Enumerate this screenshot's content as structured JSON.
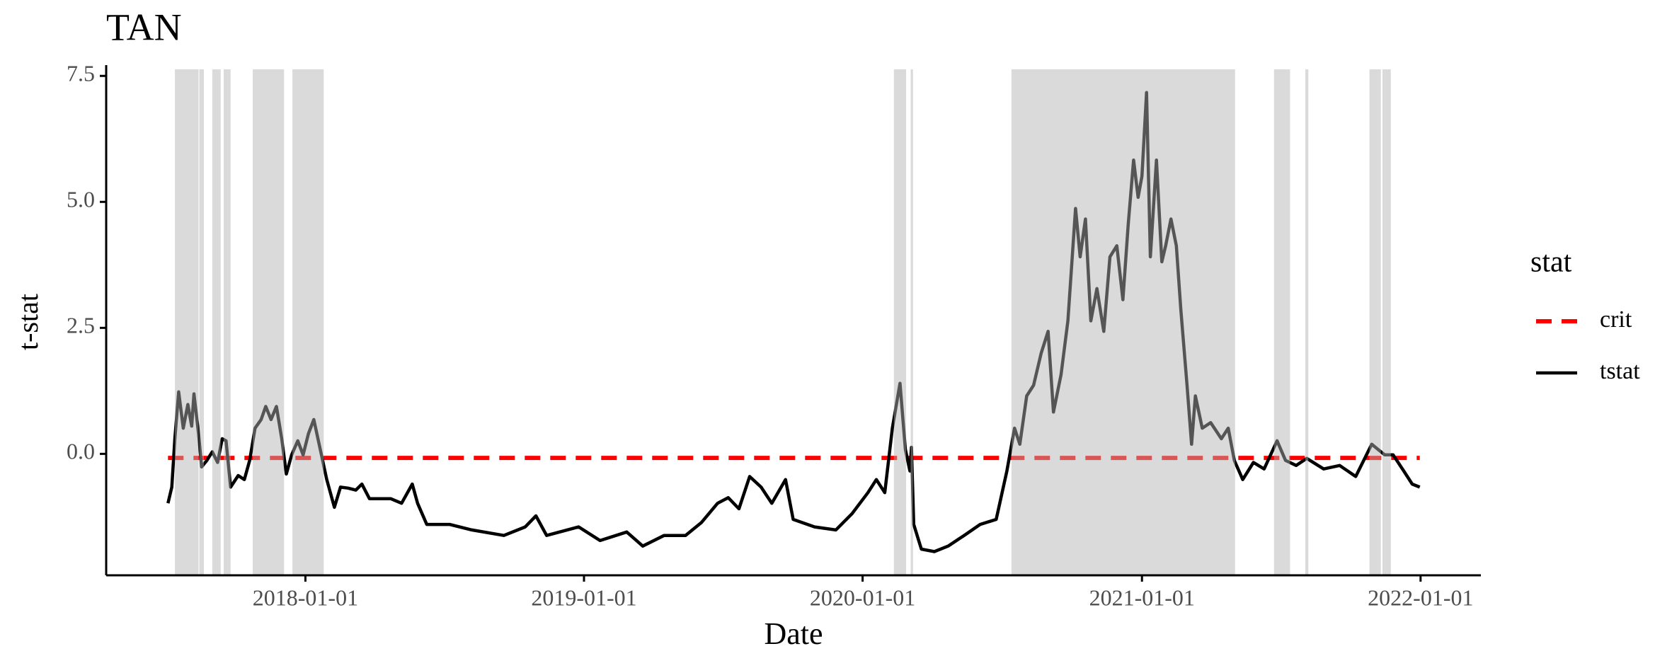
{
  "chart_data": {
    "type": "line",
    "title": "TAN",
    "xlabel": "Date",
    "ylabel": "t-stat",
    "legend_title": "stat",
    "legend": "right",
    "xlim": [
      "2017-04-15",
      "2022-03-21"
    ],
    "xticks": [
      "2018-01-01",
      "2019-01-01",
      "2020-01-01",
      "2021-01-01",
      "2022-01-01"
    ],
    "ylim": [
      -2.41,
      7.63
    ],
    "yticks": [
      {
        "value": 0,
        "label": "0.0"
      },
      2.5,
      {
        "value": 5,
        "label": "5.0"
      },
      7.5
    ],
    "shade_color": "#b1b1b1",
    "shaded": [
      [
        "2017-07-14",
        "2017-08-14"
      ],
      [
        "2017-08-15",
        "2017-08-21"
      ],
      [
        "2017-09-01",
        "2017-09-12"
      ],
      [
        "2017-09-16",
        "2017-09-25"
      ],
      [
        "2017-10-24",
        "2017-12-04"
      ],
      [
        "2017-12-15",
        "2018-01-25"
      ],
      [
        "2020-02-11",
        "2020-02-27"
      ],
      [
        "2020-03-04",
        "2020-03-07"
      ],
      [
        "2020-07-14",
        "2021-05-03"
      ],
      [
        "2021-06-23",
        "2021-07-14"
      ],
      [
        "2021-08-03",
        "2021-08-07"
      ],
      [
        "2021-10-26",
        "2021-11-10"
      ],
      [
        "2021-11-12",
        "2021-11-23"
      ]
    ],
    "series": [
      {
        "name": "crit",
        "color": "#ff0000",
        "dashed": true,
        "x": [
          "2017-07-05",
          "2021-12-31"
        ],
        "values": [
          -0.08,
          -0.08
        ]
      },
      {
        "name": "tstat",
        "color": "#000000",
        "dashed": false,
        "x": [
          "2017-07-05",
          "2017-07-10",
          "2017-07-14",
          "2017-07-19",
          "2017-07-25",
          "2017-07-31",
          "2017-08-05",
          "2017-08-08",
          "2017-08-14",
          "2017-08-18",
          "2017-08-25",
          "2017-09-01",
          "2017-09-08",
          "2017-09-14",
          "2017-09-19",
          "2017-09-25",
          "2017-10-05",
          "2017-10-13",
          "2017-10-20",
          "2017-10-27",
          "2017-11-04",
          "2017-11-10",
          "2017-11-17",
          "2017-11-24",
          "2017-12-01",
          "2017-12-07",
          "2017-12-14",
          "2017-12-22",
          "2017-12-29",
          "2018-01-05",
          "2018-01-12",
          "2018-01-22",
          "2018-01-29",
          "2018-02-08",
          "2018-02-16",
          "2018-02-26",
          "2018-03-08",
          "2018-03-16",
          "2018-03-26",
          "2018-04-09",
          "2018-04-23",
          "2018-05-07",
          "2018-05-21",
          "2018-05-28",
          "2018-06-09",
          "2018-07-09",
          "2018-08-07",
          "2018-09-18",
          "2018-10-16",
          "2018-10-30",
          "2018-11-13",
          "2018-12-25",
          "2019-01-22",
          "2019-02-26",
          "2019-03-19",
          "2019-04-16",
          "2019-05-14",
          "2019-06-04",
          "2019-06-25",
          "2019-07-09",
          "2019-07-23",
          "2019-08-06",
          "2019-08-21",
          "2019-09-04",
          "2019-09-22",
          "2019-10-02",
          "2019-10-30",
          "2019-11-27",
          "2019-12-18",
          "2020-01-08",
          "2020-01-19",
          "2020-01-30",
          "2020-02-09",
          "2020-02-19",
          "2020-02-26",
          "2020-03-03",
          "2020-03-05",
          "2020-03-08",
          "2020-03-18",
          "2020-04-04",
          "2020-04-22",
          "2020-05-13",
          "2020-06-03",
          "2020-06-24",
          "2020-07-08",
          "2020-07-18",
          "2020-07-25",
          "2020-08-03",
          "2020-08-12",
          "2020-08-22",
          "2020-08-31",
          "2020-09-07",
          "2020-09-17",
          "2020-09-26",
          "2020-10-06",
          "2020-10-12",
          "2020-10-19",
          "2020-10-26",
          "2020-11-03",
          "2020-11-12",
          "2020-11-20",
          "2020-11-29",
          "2020-12-07",
          "2020-12-14",
          "2020-12-21",
          "2020-12-27",
          "2021-01-01",
          "2021-01-07",
          "2021-01-12",
          "2021-01-20",
          "2021-01-27",
          "2021-02-01",
          "2021-02-08",
          "2021-02-15",
          "2021-02-21",
          "2021-03-01",
          "2021-03-07",
          "2021-03-12",
          "2021-03-21",
          "2021-04-01",
          "2021-04-15",
          "2021-04-24",
          "2021-05-02",
          "2021-05-13",
          "2021-05-27",
          "2021-06-10",
          "2021-06-27",
          "2021-07-08",
          "2021-07-22",
          "2021-08-05",
          "2021-08-27",
          "2021-09-17",
          "2021-10-08",
          "2021-10-29",
          "2021-11-15",
          "2021-11-26",
          "2021-12-10",
          "2021-12-21",
          "2021-12-31"
        ],
        "values": [
          -0.98,
          -0.66,
          0.3,
          1.23,
          0.51,
          0.98,
          0.55,
          1.19,
          0.4,
          -0.26,
          -0.13,
          0.04,
          -0.17,
          0.3,
          0.26,
          -0.66,
          -0.43,
          -0.51,
          -0.13,
          0.51,
          0.68,
          0.94,
          0.68,
          0.94,
          0.3,
          -0.4,
          -0.02,
          0.26,
          -0.02,
          0.4,
          0.68,
          -0.02,
          -0.51,
          -1.06,
          -0.66,
          -0.68,
          -0.72,
          -0.6,
          -0.89,
          -0.89,
          -0.89,
          -0.98,
          -0.6,
          -0.98,
          -1.4,
          -1.4,
          -1.51,
          -1.62,
          -1.45,
          -1.23,
          -1.62,
          -1.45,
          -1.72,
          -1.55,
          -1.83,
          -1.62,
          -1.62,
          -1.36,
          -0.98,
          -0.87,
          -1.09,
          -0.45,
          -0.66,
          -0.98,
          -0.51,
          -1.3,
          -1.45,
          -1.51,
          -1.19,
          -0.77,
          -0.51,
          -0.77,
          0.51,
          1.4,
          0.09,
          -0.34,
          0.13,
          -1.4,
          -1.89,
          -1.94,
          -1.83,
          -1.62,
          -1.4,
          -1.3,
          -0.34,
          0.51,
          0.19,
          1.15,
          1.36,
          2.0,
          2.43,
          0.83,
          1.57,
          2.64,
          4.87,
          3.91,
          4.66,
          2.64,
          3.28,
          2.43,
          3.91,
          4.13,
          3.06,
          4.55,
          5.83,
          5.09,
          5.51,
          7.17,
          3.91,
          5.83,
          3.81,
          4.13,
          4.66,
          4.13,
          2.85,
          1.36,
          0.19,
          1.15,
          0.51,
          0.62,
          0.3,
          0.51,
          -0.13,
          -0.51,
          -0.17,
          -0.3,
          0.26,
          -0.13,
          -0.23,
          -0.09,
          -0.3,
          -0.23,
          -0.45,
          0.19,
          -0.02,
          -0.02,
          -0.34,
          -0.6,
          -0.66
        ]
      }
    ]
  }
}
